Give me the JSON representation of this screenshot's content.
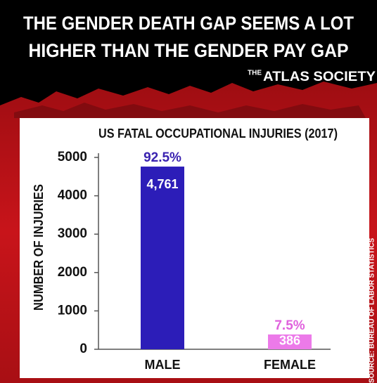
{
  "header": {
    "title": [
      "THE GENDER DEATH GAP SEEMS A LOT",
      "HIGHER THAN THE GENDER PAY GAP"
    ],
    "brand": [
      "THE",
      "ATLAS SOCIETY"
    ]
  },
  "chart_data": {
    "type": "bar",
    "title": "US FATAL OCCUPATIONAL INJURIES (2017)",
    "y_label": "NUMBER OF INJURIES",
    "categories": [
      "MALE",
      "FEMALE"
    ],
    "values": [
      4761,
      386
    ],
    "value_labels": [
      "4,761",
      "386"
    ],
    "annotations": [
      "92.5%",
      "7.5%"
    ],
    "colors": [
      "#2c1db8",
      "#ec7ae9"
    ],
    "annotation_colors": [
      "#3a22b0",
      "#e062dd"
    ],
    "ylim": [
      0,
      5000
    ],
    "yticks": [
      0,
      1000,
      2000,
      3000,
      4000,
      5000
    ],
    "grid": false,
    "source": "SOURCE: BUREAU OF LABOR STATISTICS"
  }
}
